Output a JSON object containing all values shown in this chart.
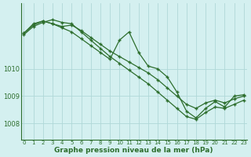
{
  "title": "Graphe pression niveau de la mer (hPa)",
  "bg_color": "#d4f0f0",
  "grid_color": "#b0d8d8",
  "line_color": "#2d6e2d",
  "marker": "+",
  "x_ticks": [
    0,
    1,
    2,
    3,
    4,
    5,
    6,
    7,
    8,
    9,
    10,
    11,
    12,
    13,
    14,
    15,
    16,
    17,
    18,
    19,
    20,
    21,
    22,
    23
  ],
  "y_ticks": [
    1008,
    1009,
    1010
  ],
  "ylim": [
    1007.4,
    1012.4
  ],
  "xlim": [
    -0.3,
    23.3
  ],
  "line1": [
    1011.3,
    1011.6,
    1011.75,
    1011.65,
    1011.55,
    1011.6,
    1011.4,
    1011.15,
    1010.9,
    1010.65,
    1010.45,
    1010.25,
    1010.05,
    1009.85,
    1009.6,
    1009.3,
    1009.0,
    1008.7,
    1008.55,
    1008.75,
    1008.85,
    1008.75,
    1008.9,
    1009.0
  ],
  "line2": [
    1011.25,
    1011.55,
    1011.7,
    1011.8,
    1011.7,
    1011.65,
    1011.35,
    1011.05,
    1010.75,
    1010.45,
    1010.2,
    1009.95,
    1009.7,
    1009.45,
    1009.15,
    1008.85,
    1008.55,
    1008.25,
    1008.15,
    1008.4,
    1008.6,
    1008.55,
    1008.7,
    1008.85
  ],
  "line3": [
    1011.3,
    1011.65,
    1011.75,
    1011.65,
    1011.5,
    1011.35,
    1011.1,
    1010.85,
    1010.6,
    1010.35,
    1011.05,
    1011.35,
    1010.6,
    1010.1,
    1010.0,
    1009.7,
    1009.15,
    1008.45,
    1008.2,
    1008.55,
    1008.8,
    1008.6,
    1009.0,
    1009.05
  ]
}
